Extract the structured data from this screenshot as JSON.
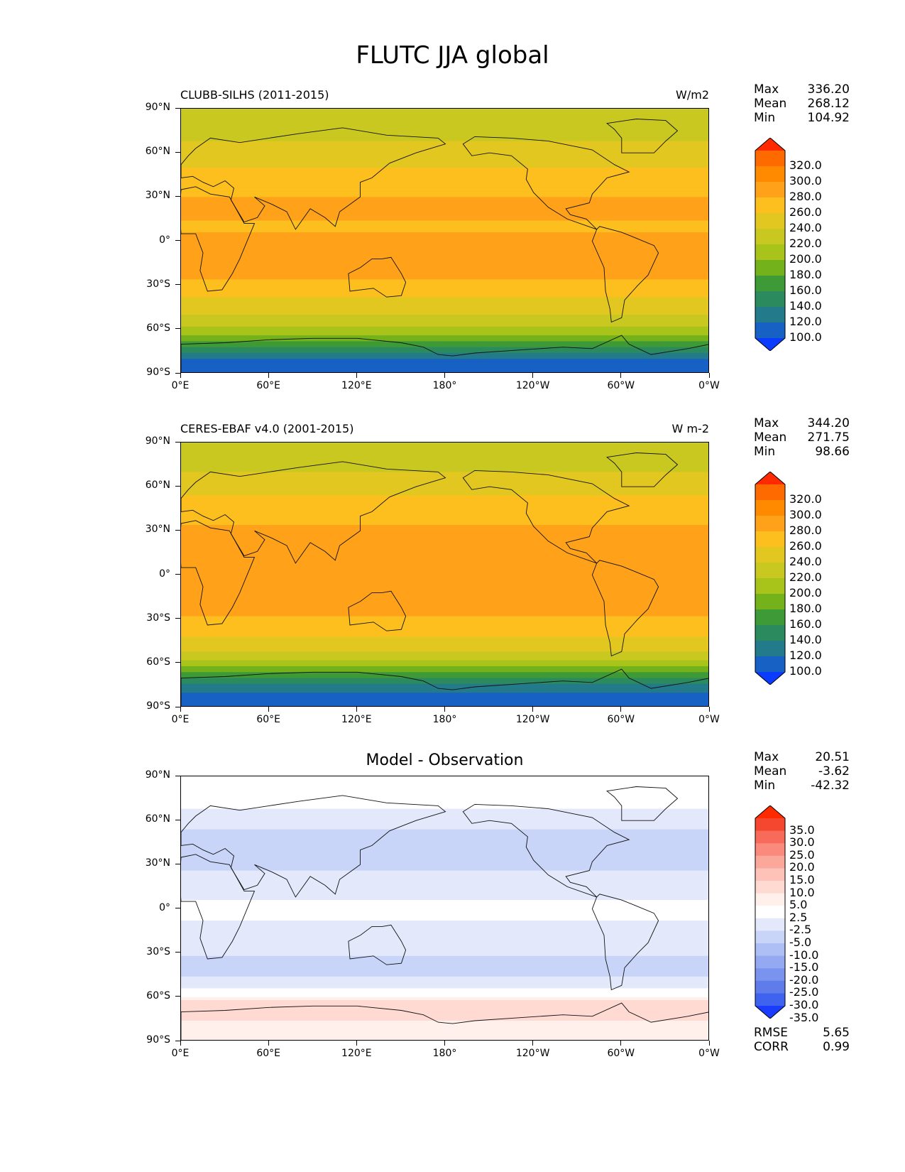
{
  "figure": {
    "title": "FLUTC JJA global"
  },
  "axes": {
    "lat_ticks": [
      "90°N",
      "60°N",
      "30°N",
      "0°",
      "30°S",
      "60°S",
      "90°S"
    ],
    "lon_ticks": [
      "0°E",
      "60°E",
      "120°E",
      "180°",
      "120°W",
      "60°W",
      "0°W"
    ]
  },
  "panels": [
    {
      "title": "CLUBB-SILHS (2011-2015)",
      "units": "W/m2",
      "stats": [
        {
          "label": "Max",
          "value": "336.20"
        },
        {
          "label": "Mean",
          "value": "268.12"
        },
        {
          "label": "Min",
          "value": "104.92"
        }
      ],
      "colorbar": {
        "labels": [
          "320.0",
          "300.0",
          "280.0",
          "260.0",
          "240.0",
          "220.0",
          "200.0",
          "180.0",
          "160.0",
          "140.0",
          "120.0",
          "100.0"
        ],
        "colors": [
          "#ff2a00",
          "#ff6a00",
          "#ff8a00",
          "#ffa21a",
          "#fcbf1e",
          "#e3c721",
          "#c9c820",
          "#a8c41b",
          "#74b21b",
          "#3e9a36",
          "#2b8a5e",
          "#237a8a",
          "#1760c4",
          "#0a3cff"
        ]
      }
    },
    {
      "title": "CERES-EBAF v4.0 (2001-2015)",
      "units": "W m-2",
      "stats": [
        {
          "label": "Max",
          "value": "344.20"
        },
        {
          "label": "Mean",
          "value": "271.75"
        },
        {
          "label": "Min",
          "value": "98.66"
        }
      ],
      "colorbar": {
        "labels": [
          "320.0",
          "300.0",
          "280.0",
          "260.0",
          "240.0",
          "220.0",
          "200.0",
          "180.0",
          "160.0",
          "140.0",
          "120.0",
          "100.0"
        ],
        "colors": [
          "#ff2a00",
          "#ff6a00",
          "#ff8a00",
          "#ffa21a",
          "#fcbf1e",
          "#e3c721",
          "#c9c820",
          "#a8c41b",
          "#74b21b",
          "#3e9a36",
          "#2b8a5e",
          "#237a8a",
          "#1760c4",
          "#0a3cff"
        ]
      }
    },
    {
      "title": "Model - Observation",
      "units": "",
      "stats": [
        {
          "label": "Max",
          "value": "20.51"
        },
        {
          "label": "Mean",
          "value": "-3.62"
        },
        {
          "label": "Min",
          "value": "-42.32"
        }
      ],
      "extra_stats": [
        {
          "label": "RMSE",
          "value": "5.65"
        },
        {
          "label": "CORR",
          "value": "0.99"
        }
      ],
      "colorbar": {
        "labels": [
          "35.0",
          "30.0",
          "25.0",
          "20.0",
          "15.0",
          "10.0",
          "5.0",
          "2.5",
          "-2.5",
          "-5.0",
          "-10.0",
          "-15.0",
          "-20.0",
          "-25.0",
          "-30.0",
          "-35.0"
        ],
        "colors": [
          "#ff2a00",
          "#f5472f",
          "#f86b5a",
          "#fa8a7b",
          "#fba79a",
          "#fdc2b8",
          "#fedad3",
          "#fff0ec",
          "#ffffff",
          "#e3e9fb",
          "#c8d4f8",
          "#aebff5",
          "#94a9f1",
          "#7a93ee",
          "#5f7cea",
          "#4063ef",
          "#1a3cff"
        ]
      }
    }
  ],
  "chart_data": [
    {
      "type": "heatmap",
      "title": "CLUBB-SILHS (2011-2015)",
      "units": "W/m2",
      "x": [
        "0°E",
        "60°E",
        "120°E",
        "180°",
        "120°W",
        "60°W",
        "0°W"
      ],
      "y": [
        "90°N",
        "60°N",
        "30°N",
        "0°",
        "30°S",
        "60°S",
        "90°S"
      ],
      "xlim": [
        0,
        360
      ],
      "ylim": [
        -90,
        90
      ],
      "levels": [
        100,
        120,
        140,
        160,
        180,
        200,
        220,
        240,
        260,
        280,
        300,
        320
      ],
      "zonal_profile": [
        {
          "lat": 85,
          "value": 222
        },
        {
          "lat": 70,
          "value": 238
        },
        {
          "lat": 55,
          "value": 255
        },
        {
          "lat": 40,
          "value": 270
        },
        {
          "lat": 25,
          "value": 285
        },
        {
          "lat": 10,
          "value": 278
        },
        {
          "lat": 0,
          "value": 282
        },
        {
          "lat": -10,
          "value": 288
        },
        {
          "lat": -25,
          "value": 280
        },
        {
          "lat": -40,
          "value": 258
        },
        {
          "lat": -52,
          "value": 238
        },
        {
          "lat": -62,
          "value": 205
        },
        {
          "lat": -70,
          "value": 168
        },
        {
          "lat": -80,
          "value": 120
        },
        {
          "lat": -88,
          "value": 105
        }
      ],
      "stats": {
        "max": 336.2,
        "mean": 268.12,
        "min": 104.92
      }
    },
    {
      "type": "heatmap",
      "title": "CERES-EBAF v4.0 (2001-2015)",
      "units": "W m-2",
      "x": [
        "0°E",
        "60°E",
        "120°E",
        "180°",
        "120°W",
        "60°W",
        "0°W"
      ],
      "y": [
        "90°N",
        "60°N",
        "30°N",
        "0°",
        "30°S",
        "60°S",
        "90°S"
      ],
      "xlim": [
        0,
        360
      ],
      "ylim": [
        -90,
        90
      ],
      "levels": [
        100,
        120,
        140,
        160,
        180,
        200,
        220,
        240,
        260,
        280,
        300,
        320
      ],
      "zonal_profile": [
        {
          "lat": 85,
          "value": 224
        },
        {
          "lat": 70,
          "value": 240
        },
        {
          "lat": 55,
          "value": 258
        },
        {
          "lat": 40,
          "value": 275
        },
        {
          "lat": 25,
          "value": 288
        },
        {
          "lat": 10,
          "value": 282
        },
        {
          "lat": 0,
          "value": 285
        },
        {
          "lat": -10,
          "value": 292
        },
        {
          "lat": -25,
          "value": 283
        },
        {
          "lat": -40,
          "value": 262
        },
        {
          "lat": -52,
          "value": 240
        },
        {
          "lat": -62,
          "value": 200
        },
        {
          "lat": -70,
          "value": 160
        },
        {
          "lat": -80,
          "value": 118
        },
        {
          "lat": -88,
          "value": 110
        }
      ],
      "stats": {
        "max": 344.2,
        "mean": 271.75,
        "min": 98.66
      }
    },
    {
      "type": "heatmap",
      "title": "Model - Observation",
      "x": [
        "0°E",
        "60°E",
        "120°E",
        "180°",
        "120°W",
        "60°W",
        "0°W"
      ],
      "y": [
        "90°N",
        "60°N",
        "30°N",
        "0°",
        "30°S",
        "60°S",
        "90°S"
      ],
      "xlim": [
        0,
        360
      ],
      "ylim": [
        -90,
        90
      ],
      "levels": [
        -35,
        -30,
        -25,
        -20,
        -15,
        -10,
        -5,
        -2.5,
        2.5,
        5,
        10,
        15,
        20,
        25,
        30,
        35
      ],
      "zonal_profile": [
        {
          "lat": 85,
          "value": 0
        },
        {
          "lat": 70,
          "value": -2
        },
        {
          "lat": 55,
          "value": -5
        },
        {
          "lat": 40,
          "value": -6
        },
        {
          "lat": 25,
          "value": -5
        },
        {
          "lat": 10,
          "value": -4
        },
        {
          "lat": 0,
          "value": 0
        },
        {
          "lat": -10,
          "value": -3
        },
        {
          "lat": -25,
          "value": -4
        },
        {
          "lat": -40,
          "value": -6
        },
        {
          "lat": -52,
          "value": -4
        },
        {
          "lat": -62,
          "value": 5
        },
        {
          "lat": -70,
          "value": 6
        },
        {
          "lat": -80,
          "value": 4
        },
        {
          "lat": -88,
          "value": 3
        }
      ],
      "stats": {
        "max": 20.51,
        "mean": -3.62,
        "min": -42.32,
        "rmse": 5.65,
        "corr": 0.99
      }
    }
  ]
}
